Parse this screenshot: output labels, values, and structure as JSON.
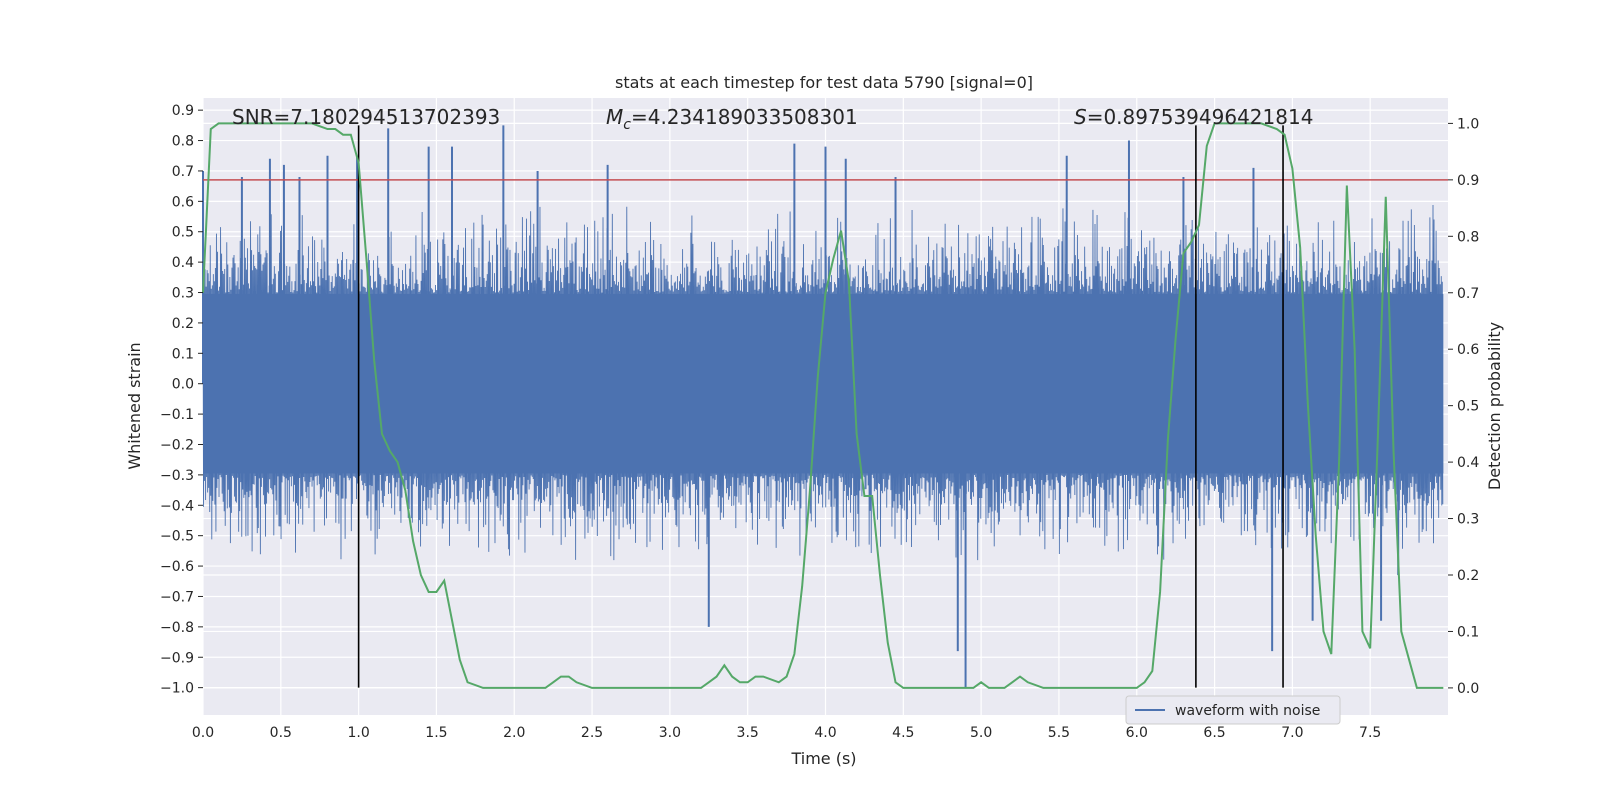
{
  "chart_data": {
    "type": "line",
    "title": "stats at each timestep for test data 5790 [signal=0]",
    "xlabel": "Time (s)",
    "ylabel": "Whitened strain",
    "y2label": "Detection probability",
    "xlim": [
      0.0,
      8.0
    ],
    "ylim": [
      -1.09,
      0.94
    ],
    "y2lim": [
      -0.048,
      1.045
    ],
    "x_ticks": [
      "0.0",
      "0.5",
      "1.0",
      "1.5",
      "2.0",
      "2.5",
      "3.0",
      "3.5",
      "4.0",
      "4.5",
      "5.0",
      "5.5",
      "6.0",
      "6.5",
      "7.0",
      "7.5"
    ],
    "y_ticks": [
      "0.9",
      "0.8",
      "0.7",
      "0.6",
      "0.5",
      "0.4",
      "0.3",
      "0.2",
      "0.1",
      "0.0",
      "−0.1",
      "−0.2",
      "−0.3",
      "−0.4",
      "−0.5",
      "−0.6",
      "−0.7",
      "−0.8",
      "−0.9",
      "−1.0"
    ],
    "y2_ticks": [
      "1.0",
      "0.9",
      "0.8",
      "0.7",
      "0.6",
      "0.5",
      "0.4",
      "0.3",
      "0.2",
      "0.1",
      "0.0"
    ],
    "annotations": {
      "snr": "SNR=7.180294513702393",
      "mc_symbol": "M",
      "mc_sub": "c",
      "mc_value": "=4.234189033508301",
      "s_symbol": "S",
      "s_value": "=0.897539496421814"
    },
    "legend": {
      "label": "waveform with noise",
      "position": "lower-right"
    },
    "threshold_probability": 0.9,
    "vertical_lines_x": [
      1.0,
      6.38,
      6.94
    ],
    "grid": true,
    "colors": {
      "waveform": "#4c72b0",
      "probability": "#55a868",
      "threshold": "#c44e52",
      "vline": "#000000",
      "axes_bg": "#eaeaf2",
      "grid": "#ffffff"
    },
    "series": [
      {
        "name": "waveform with noise",
        "type": "noise_waveform",
        "note_points": "spikes",
        "spikes_x": [
          0.0,
          0.25,
          0.43,
          0.52,
          0.62,
          0.8,
          0.99,
          1.19,
          1.45,
          1.6,
          1.93,
          2.15,
          2.6,
          3.25,
          3.8,
          4.0,
          4.13,
          4.45,
          4.85,
          4.9,
          5.55,
          5.95,
          6.3,
          6.75,
          6.87,
          7.13,
          7.57,
          7.68
        ],
        "spikes_y": [
          0.7,
          0.68,
          0.74,
          0.72,
          0.68,
          0.75,
          0.75,
          0.84,
          0.78,
          0.78,
          0.85,
          0.7,
          0.72,
          -0.8,
          0.79,
          0.78,
          0.74,
          0.68,
          -0.88,
          -1.0,
          0.75,
          0.8,
          0.68,
          0.71,
          -0.88,
          -0.78,
          -0.78,
          -0.63
        ]
      },
      {
        "name": "",
        "type": "probability",
        "x": [
          0.0,
          0.05,
          0.1,
          0.15,
          0.2,
          0.3,
          0.4,
          0.5,
          0.6,
          0.7,
          0.8,
          0.85,
          0.9,
          0.95,
          1.0,
          1.05,
          1.1,
          1.15,
          1.2,
          1.25,
          1.3,
          1.35,
          1.4,
          1.45,
          1.5,
          1.55,
          1.6,
          1.65,
          1.7,
          1.8,
          1.9,
          2.0,
          2.1,
          2.2,
          2.25,
          2.3,
          2.35,
          2.4,
          2.5,
          2.6,
          2.7,
          2.8,
          2.9,
          3.0,
          3.1,
          3.2,
          3.25,
          3.3,
          3.35,
          3.4,
          3.45,
          3.5,
          3.55,
          3.6,
          3.7,
          3.75,
          3.8,
          3.85,
          3.9,
          3.95,
          4.0,
          4.05,
          4.1,
          4.15,
          4.2,
          4.25,
          4.3,
          4.35,
          4.4,
          4.45,
          4.5,
          4.6,
          4.7,
          4.8,
          4.9,
          4.95,
          5.0,
          5.05,
          5.1,
          5.15,
          5.2,
          5.25,
          5.3,
          5.4,
          5.5,
          5.6,
          5.7,
          5.8,
          5.9,
          6.0,
          6.05,
          6.1,
          6.15,
          6.2,
          6.25,
          6.3,
          6.35,
          6.4,
          6.45,
          6.5,
          6.55,
          6.6,
          6.7,
          6.8,
          6.9,
          6.95,
          7.0,
          7.05,
          7.1,
          7.15,
          7.2,
          7.25,
          7.3,
          7.35,
          7.4,
          7.45,
          7.5,
          7.55,
          7.6,
          7.65,
          7.7,
          7.75,
          7.8,
          7.9,
          7.97
        ],
        "values": [
          0.7,
          0.99,
          1.0,
          1.0,
          1.0,
          1.0,
          1.0,
          1.0,
          1.0,
          1.0,
          0.99,
          0.99,
          0.98,
          0.98,
          0.93,
          0.76,
          0.58,
          0.45,
          0.42,
          0.4,
          0.35,
          0.26,
          0.2,
          0.17,
          0.17,
          0.19,
          0.12,
          0.05,
          0.01,
          0.0,
          0.0,
          0.0,
          0.0,
          0.0,
          0.01,
          0.02,
          0.02,
          0.01,
          0.0,
          0.0,
          0.0,
          0.0,
          0.0,
          0.0,
          0.0,
          0.0,
          0.01,
          0.02,
          0.04,
          0.02,
          0.01,
          0.01,
          0.02,
          0.02,
          0.01,
          0.02,
          0.06,
          0.18,
          0.35,
          0.55,
          0.7,
          0.76,
          0.81,
          0.72,
          0.45,
          0.34,
          0.34,
          0.2,
          0.08,
          0.01,
          0.0,
          0.0,
          0.0,
          0.0,
          0.0,
          0.0,
          0.01,
          0.0,
          0.0,
          0.0,
          0.01,
          0.02,
          0.01,
          0.0,
          0.0,
          0.0,
          0.0,
          0.0,
          0.0,
          0.0,
          0.01,
          0.03,
          0.17,
          0.44,
          0.62,
          0.77,
          0.79,
          0.82,
          0.96,
          1.0,
          1.0,
          1.0,
          1.0,
          1.0,
          0.99,
          0.98,
          0.92,
          0.78,
          0.5,
          0.27,
          0.1,
          0.06,
          0.4,
          0.89,
          0.6,
          0.1,
          0.07,
          0.45,
          0.87,
          0.42,
          0.1,
          0.05,
          0.0,
          0.0,
          0.0
        ]
      }
    ]
  }
}
